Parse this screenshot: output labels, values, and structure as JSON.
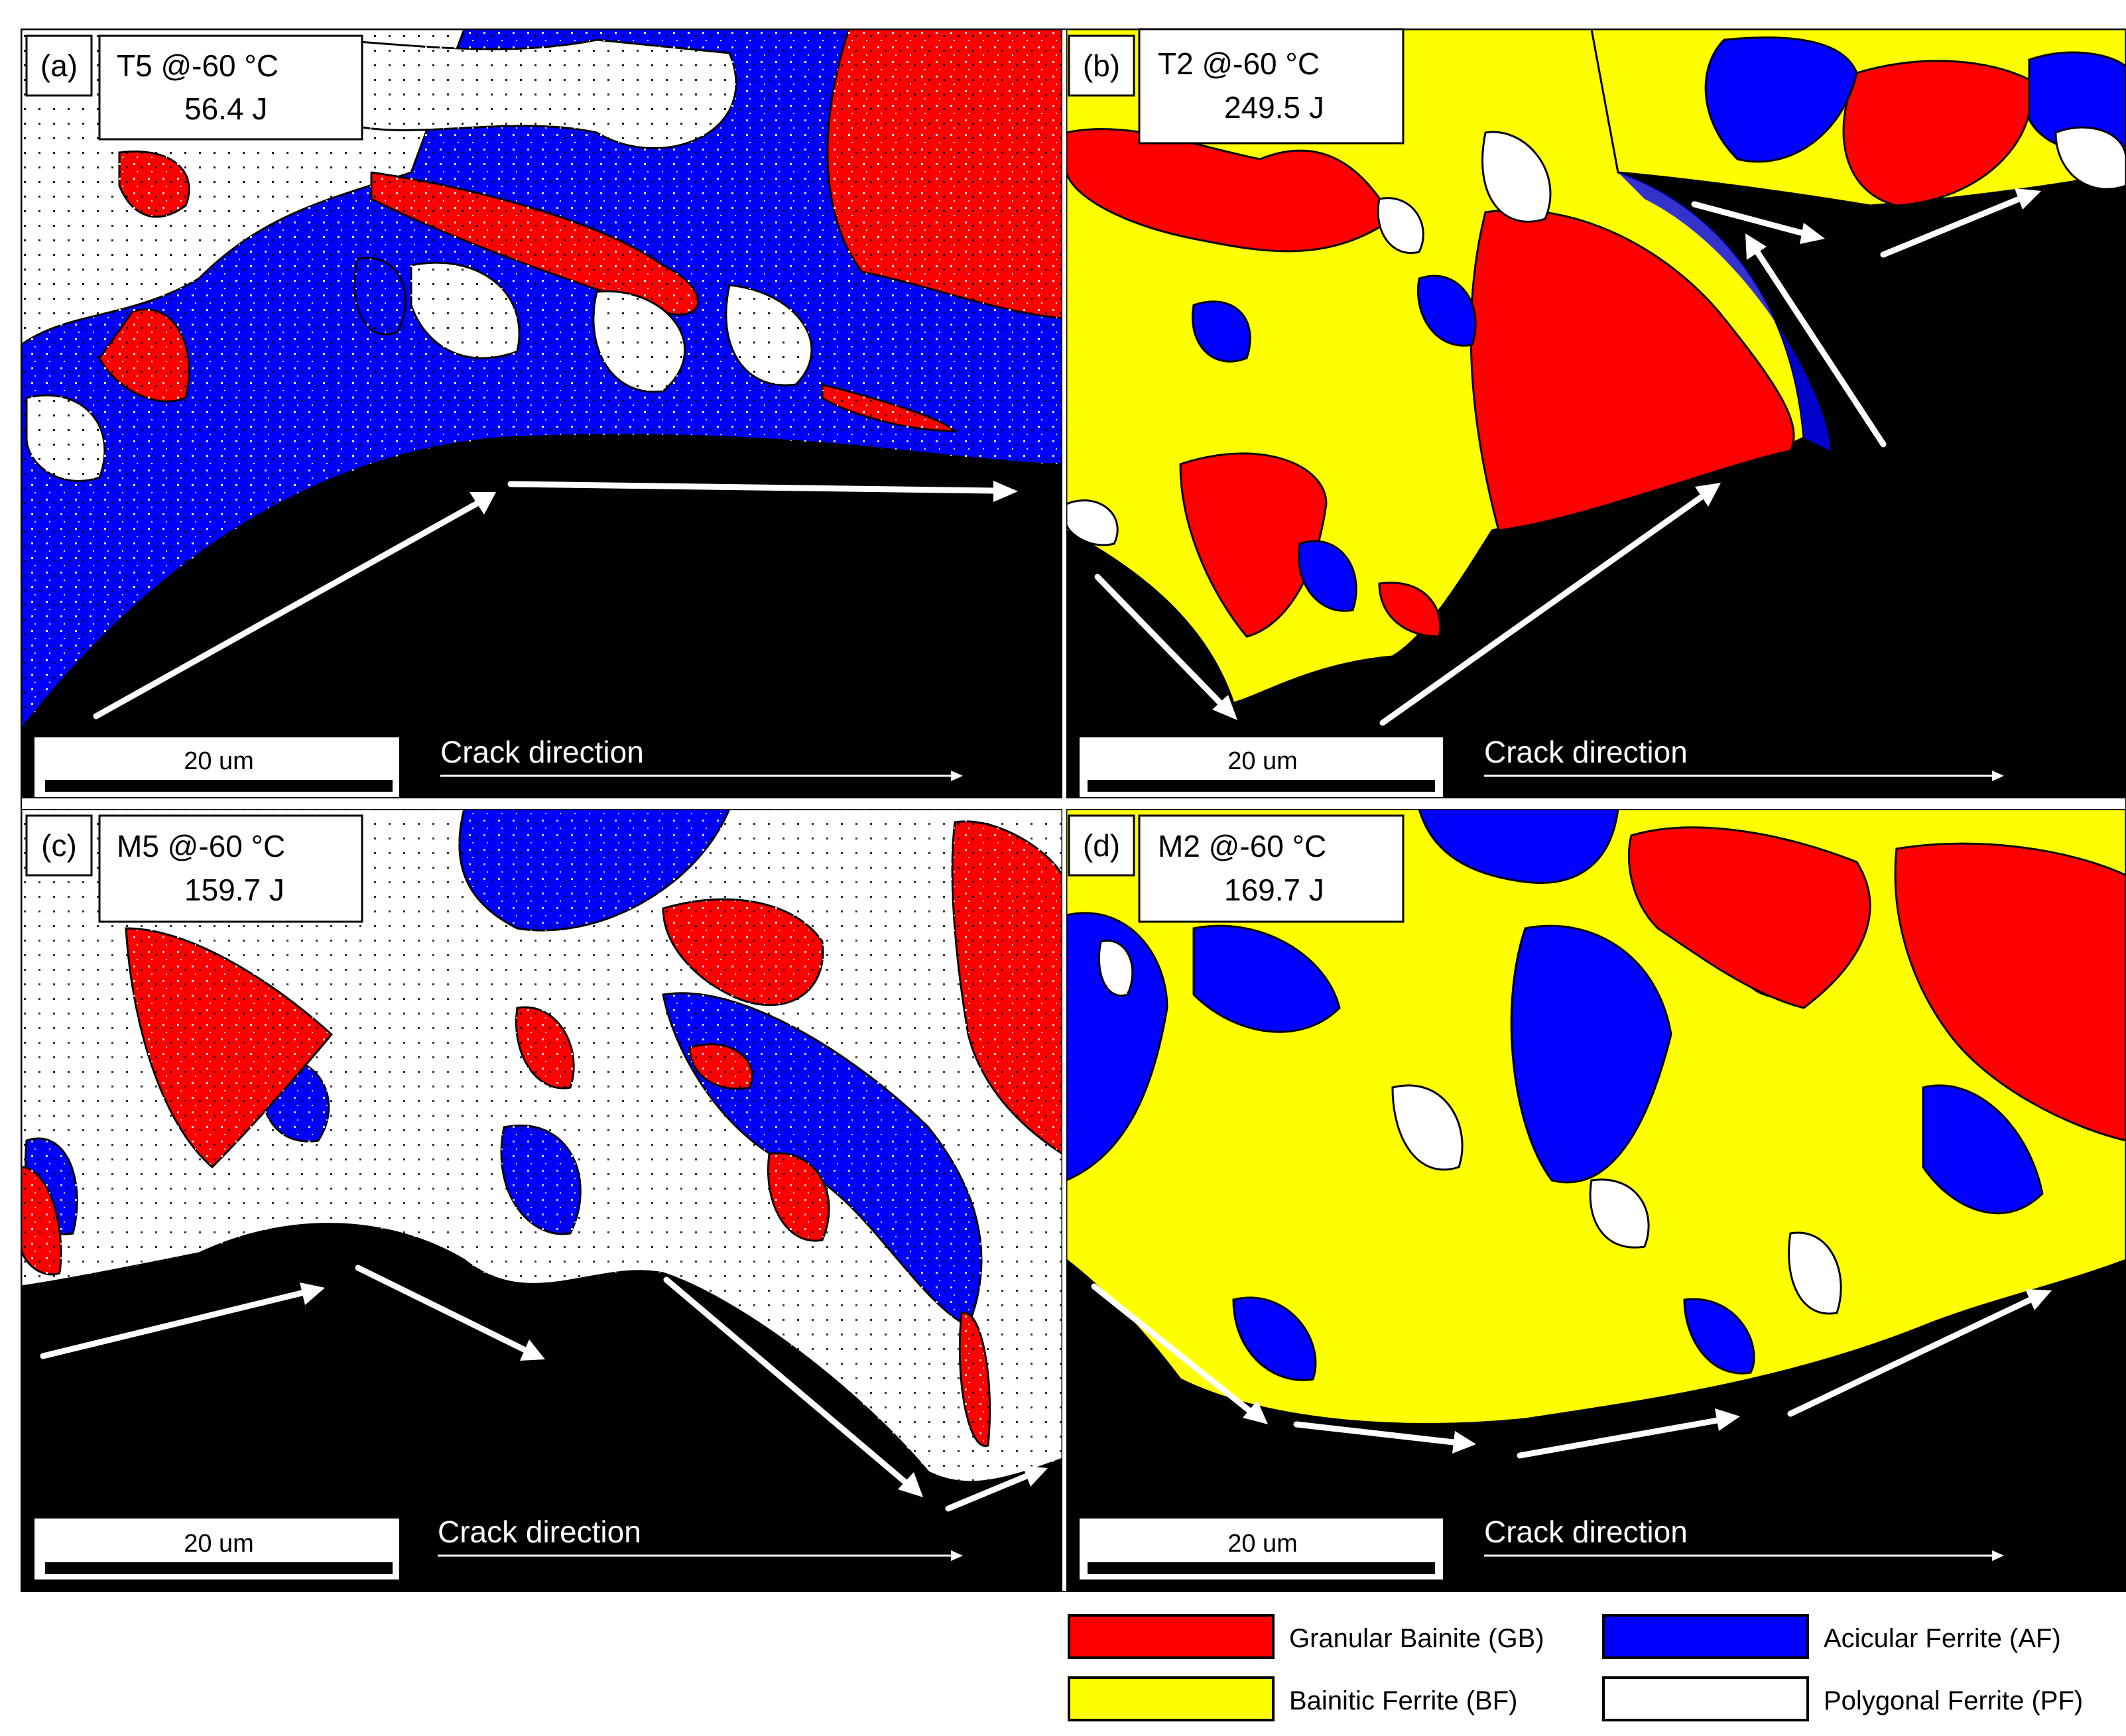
{
  "panels": [
    {
      "id": "a",
      "letter": "(a)",
      "title": "T5 @-60 °C",
      "energy": "56.4 J",
      "scale": "20 um",
      "crack": "Crack direction"
    },
    {
      "id": "b",
      "letter": "(b)",
      "title": "T2 @-60 °C",
      "energy": "249.5 J",
      "scale": "20 um",
      "crack": "Crack direction"
    },
    {
      "id": "c",
      "letter": "(c)",
      "title": "M5 @-60 °C",
      "energy": "159.7 J",
      "scale": "20 um",
      "crack": "Crack direction"
    },
    {
      "id": "d",
      "letter": "(d)",
      "title": "M2 @-60 °C",
      "energy": "169.7 J",
      "scale": "20 um",
      "crack": "Crack direction"
    }
  ],
  "legend": [
    {
      "label": "Granular Bainite (GB)",
      "color": "#ff0000"
    },
    {
      "label": "Acicular Ferrite (AF)",
      "color": "#0000ff"
    },
    {
      "label": "Bainitic Ferrite (BF)",
      "color": "#ffff00"
    },
    {
      "label": "Polygonal Ferrite (PF)",
      "color": "#ffffff"
    }
  ],
  "colors": {
    "background": "#000000",
    "GB": "#ff0000",
    "AF": "#0000ff",
    "BF": "#ffff00",
    "PF": "#ffffff"
  }
}
